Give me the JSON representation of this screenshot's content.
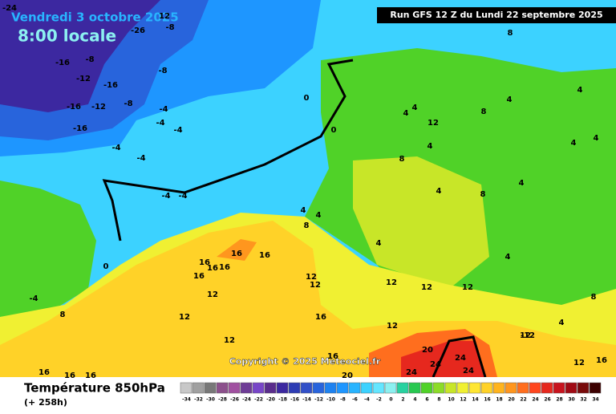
{
  "header": {
    "date": "Vendredi 3 octobre 2025",
    "time": "8:00 locale",
    "run": "Run GFS 12 Z du Lundi 22 septembre 2025"
  },
  "copyright": "Copyright © 2025 Meteociel.fr",
  "footer": {
    "title": "Température 850hPa",
    "lead": "(+ 258h)"
  },
  "scale": {
    "values": [
      -34,
      -32,
      -30,
      -28,
      -26,
      -24,
      -22,
      -20,
      -18,
      -16,
      -14,
      -12,
      -10,
      -8,
      -6,
      -4,
      -2,
      0,
      2,
      4,
      6,
      8,
      10,
      12,
      14,
      16,
      18,
      20,
      22,
      24,
      26,
      28,
      30,
      32,
      34
    ],
    "colors": [
      "#c8c8c8",
      "#a0a0a0",
      "#787878",
      "#8c508c",
      "#a050a0",
      "#6e3c96",
      "#7846c8",
      "#5a2d8c",
      "#3c28a0",
      "#2d3cb4",
      "#3250c8",
      "#2864dc",
      "#1e82f0",
      "#1e96ff",
      "#28b4ff",
      "#3cd2ff",
      "#64e6ff",
      "#8cf0f0",
      "#28d2a0",
      "#28c850",
      "#50d228",
      "#8cdc28",
      "#c8e628",
      "#f0f032",
      "#ffe632",
      "#ffd228",
      "#ffb41e",
      "#ff961e",
      "#ff6e1e",
      "#ff461e",
      "#e6281e",
      "#c8141e",
      "#a00a14",
      "#780a0a",
      "#3c0000"
    ]
  },
  "map_labels": [
    -8,
    -16,
    -12,
    -16,
    -8,
    -16,
    -12,
    -16,
    -4,
    -4,
    -4,
    -4,
    -4,
    -4,
    -4,
    -8,
    0,
    0,
    0,
    -4,
    8,
    16,
    16,
    16,
    16,
    16,
    16,
    12,
    12,
    12,
    12,
    12,
    12,
    12,
    12,
    16,
    12,
    20,
    24,
    24,
    24,
    24,
    20,
    16,
    16,
    16,
    16,
    8,
    4,
    4,
    4,
    8,
    4,
    4,
    4,
    12,
    8,
    4,
    4,
    4,
    4,
    4,
    8,
    4,
    12,
    12,
    16,
    8,
    4,
    4,
    8,
    -12,
    -24,
    -26,
    -8,
    12
  ]
}
